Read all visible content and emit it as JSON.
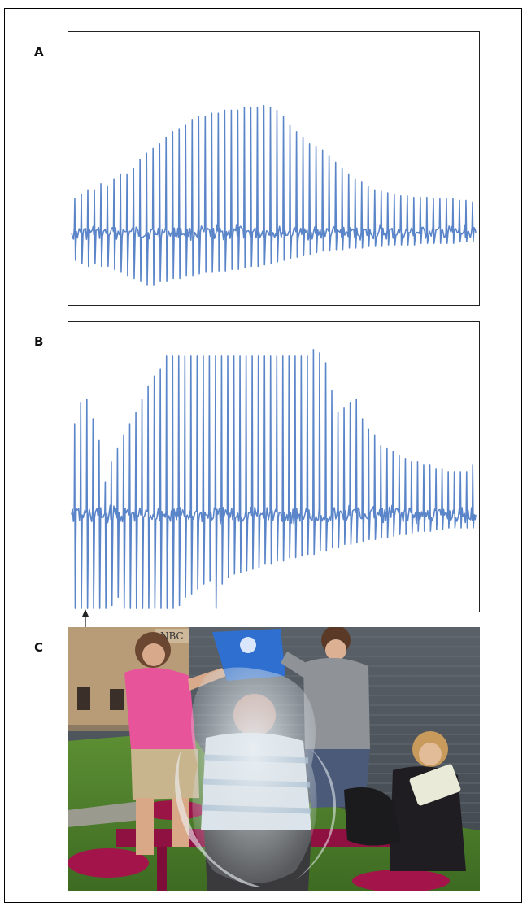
{
  "panels": {
    "a": {
      "label": "A"
    },
    "b": {
      "label": "B"
    },
    "c": {
      "label": "C"
    }
  },
  "photo": {
    "sign_text": "NBC"
  },
  "colors": {
    "trace": "#5b85c9",
    "frame": "#222222"
  },
  "chart_data": [
    {
      "type": "line",
      "panel": "A",
      "title": "",
      "xlabel": "",
      "ylabel": "",
      "grid": false,
      "ylim": [
        -1,
        1
      ],
      "spike_count": 62,
      "spike_peaks": [
        0.22,
        0.25,
        0.28,
        0.28,
        0.32,
        0.3,
        0.35,
        0.38,
        0.38,
        0.42,
        0.48,
        0.52,
        0.55,
        0.58,
        0.62,
        0.66,
        0.68,
        0.7,
        0.74,
        0.76,
        0.76,
        0.78,
        0.78,
        0.8,
        0.8,
        0.8,
        0.82,
        0.82,
        0.82,
        0.83,
        0.82,
        0.8,
        0.76,
        0.7,
        0.66,
        0.62,
        0.58,
        0.56,
        0.54,
        0.5,
        0.46,
        0.42,
        0.38,
        0.35,
        0.33,
        0.3,
        0.28,
        0.27,
        0.26,
        0.25,
        0.24,
        0.24,
        0.23,
        0.23,
        0.23,
        0.22,
        0.22,
        0.22,
        0.22,
        0.21,
        0.21,
        0.2
      ],
      "trough_depth": [
        -0.18,
        -0.2,
        -0.22,
        -0.2,
        -0.22,
        -0.22,
        -0.24,
        -0.26,
        -0.28,
        -0.3,
        -0.32,
        -0.34,
        -0.34,
        -0.32,
        -0.32,
        -0.3,
        -0.3,
        -0.28,
        -0.28,
        -0.27,
        -0.26,
        -0.26,
        -0.25,
        -0.25,
        -0.24,
        -0.24,
        -0.23,
        -0.22,
        -0.22,
        -0.21,
        -0.2,
        -0.19,
        -0.18,
        -0.17,
        -0.16,
        -0.15,
        -0.14,
        -0.13,
        -0.12,
        -0.12,
        -0.11,
        -0.11,
        -0.1,
        -0.1,
        -0.1,
        -0.09,
        -0.09,
        -0.09,
        -0.08,
        -0.08,
        -0.08,
        -0.08,
        -0.08,
        -0.07,
        -0.07,
        -0.07,
        -0.07,
        -0.07,
        -0.07,
        -0.06,
        -0.06,
        -0.06
      ]
    },
    {
      "type": "line",
      "panel": "B",
      "title": "",
      "xlabel": "",
      "ylabel": "",
      "grid": false,
      "ylim": [
        -1,
        1
      ],
      "spike_count": 66,
      "spike_peaks": [
        0.55,
        0.68,
        0.7,
        0.58,
        0.45,
        0.2,
        0.32,
        0.4,
        0.48,
        0.55,
        0.62,
        0.7,
        0.78,
        0.84,
        0.88,
        0.96,
        0.96,
        0.96,
        0.96,
        0.96,
        0.96,
        0.96,
        0.96,
        0.96,
        0.96,
        0.96,
        0.96,
        0.96,
        0.96,
        0.96,
        0.96,
        0.96,
        0.96,
        0.96,
        0.96,
        0.96,
        0.96,
        0.96,
        0.96,
        1.0,
        0.98,
        0.92,
        0.75,
        0.62,
        0.65,
        0.68,
        0.7,
        0.58,
        0.52,
        0.48,
        0.42,
        0.4,
        0.38,
        0.36,
        0.34,
        0.32,
        0.32,
        0.3,
        0.3,
        0.28,
        0.28,
        0.26,
        0.26,
        0.26,
        0.26,
        0.3
      ],
      "trough_depth": [
        -0.85,
        -0.88,
        -0.8,
        -0.9,
        -0.72,
        -0.6,
        -0.55,
        -0.5,
        -0.62,
        -0.72,
        -0.8,
        -0.85,
        -0.9,
        -0.88,
        -0.8,
        -0.7,
        -0.6,
        -0.55,
        -0.5,
        -0.48,
        -0.45,
        -0.42,
        -0.4,
        -0.6,
        -0.42,
        -0.38,
        -0.36,
        -0.35,
        -0.34,
        -0.33,
        -0.32,
        -0.3,
        -0.3,
        -0.28,
        -0.28,
        -0.26,
        -0.26,
        -0.25,
        -0.24,
        -0.24,
        -0.22,
        -0.22,
        -0.2,
        -0.2,
        -0.18,
        -0.18,
        -0.17,
        -0.16,
        -0.15,
        -0.15,
        -0.14,
        -0.14,
        -0.13,
        -0.12,
        -0.12,
        -0.11,
        -0.1,
        -0.1,
        -0.1,
        -0.09,
        -0.09,
        -0.08,
        -0.08,
        -0.08,
        -0.08,
        -0.08
      ]
    }
  ]
}
